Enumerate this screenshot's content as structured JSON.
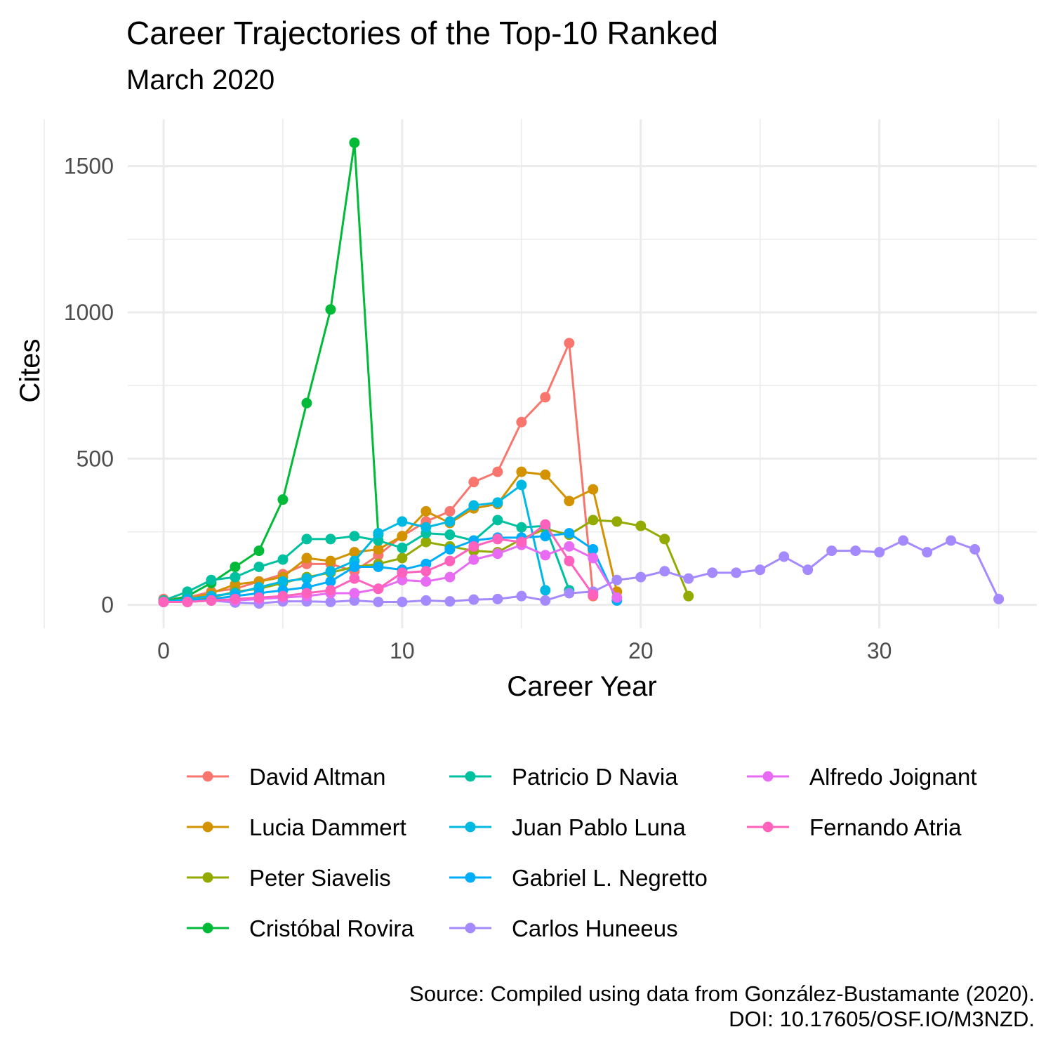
{
  "chart_data": {
    "type": "line",
    "title": "Career Trajectories of the Top-10 Ranked",
    "subtitle": "March 2020",
    "xlabel": "Career Year",
    "ylabel": "Cites",
    "xlim": [
      -1.5,
      36.6
    ],
    "ylim": [
      -80,
      1660
    ],
    "xticks": [
      0,
      10,
      20,
      30
    ],
    "yticks": [
      0,
      500,
      1000,
      1500
    ],
    "grid": true,
    "legend_position": "bottom",
    "caption_line1": "Source: Compiled using data from González-Bustamante (2020).",
    "caption_line2": "DOI: 10.17605/OSF.IO/M3NZD.",
    "series": [
      {
        "name": "David Altman",
        "color": "#F8766D",
        "x": [
          0,
          1,
          2,
          3,
          4,
          5,
          6,
          7,
          8,
          9,
          10,
          11,
          12,
          13,
          14,
          15,
          16,
          17,
          18
        ],
        "y": [
          20,
          25,
          45,
          55,
          80,
          105,
          140,
          140,
          115,
          170,
          235,
          285,
          320,
          420,
          455,
          625,
          710,
          895,
          30
        ]
      },
      {
        "name": "Lucia Dammert",
        "color": "#D39200",
        "x": [
          0,
          1,
          2,
          3,
          4,
          5,
          6,
          7,
          8,
          9,
          10,
          11,
          12,
          13,
          14,
          15,
          16,
          17,
          18,
          19
        ],
        "y": [
          15,
          20,
          40,
          70,
          80,
          95,
          160,
          150,
          180,
          190,
          235,
          320,
          280,
          330,
          345,
          455,
          445,
          355,
          395,
          45
        ]
      },
      {
        "name": "Peter Siavelis",
        "color": "#93AA00",
        "x": [
          0,
          1,
          2,
          3,
          4,
          5,
          6,
          7,
          8,
          9,
          10,
          11,
          12,
          13,
          14,
          15,
          16,
          17,
          18,
          19,
          20,
          21,
          22
        ],
        "y": [
          10,
          15,
          25,
          45,
          55,
          75,
          95,
          110,
          130,
          140,
          160,
          215,
          200,
          185,
          180,
          225,
          260,
          240,
          290,
          285,
          270,
          225,
          30
        ]
      },
      {
        "name": "Cristóbal Rovira",
        "color": "#00BA38",
        "x": [
          0,
          1,
          2,
          3,
          4,
          5,
          6,
          7,
          8,
          9
        ],
        "y": [
          10,
          30,
          75,
          130,
          185,
          360,
          690,
          1010,
          1580,
          240
        ]
      },
      {
        "name": "Patricio D Navia",
        "color": "#00C19F",
        "x": [
          0,
          1,
          2,
          3,
          4,
          5,
          6,
          7,
          8,
          9,
          10,
          11,
          12,
          13,
          14,
          15,
          16,
          17
        ],
        "y": [
          15,
          45,
          85,
          95,
          130,
          155,
          225,
          225,
          235,
          220,
          195,
          245,
          240,
          220,
          290,
          265,
          270,
          50
        ]
      },
      {
        "name": "Juan Pablo Luna",
        "color": "#00B9E3",
        "x": [
          0,
          1,
          2,
          3,
          4,
          5,
          6,
          7,
          8,
          9,
          10,
          11,
          12,
          13,
          14,
          15,
          16
        ],
        "y": [
          10,
          20,
          30,
          40,
          60,
          80,
          90,
          115,
          150,
          245,
          285,
          265,
          285,
          340,
          350,
          410,
          50
        ]
      },
      {
        "name": "Gabriel L. Negretto",
        "color": "#00ADFA",
        "x": [
          0,
          1,
          2,
          3,
          4,
          5,
          6,
          7,
          8,
          9,
          10,
          11,
          12,
          13,
          14,
          15,
          16,
          17,
          18,
          19
        ],
        "y": [
          10,
          15,
          20,
          30,
          40,
          50,
          60,
          80,
          130,
          130,
          120,
          140,
          190,
          220,
          230,
          230,
          235,
          245,
          190,
          15
        ]
      },
      {
        "name": "Carlos Huneeus",
        "color": "#A58AFF",
        "x": [
          0,
          1,
          2,
          3,
          4,
          5,
          6,
          7,
          8,
          9,
          10,
          11,
          12,
          13,
          14,
          15,
          16,
          17,
          18,
          19,
          20,
          21,
          22,
          23,
          24,
          25,
          26,
          27,
          28,
          29,
          30,
          31,
          32,
          33,
          34,
          35
        ],
        "y": [
          10,
          10,
          15,
          8,
          5,
          12,
          12,
          10,
          15,
          10,
          10,
          15,
          12,
          18,
          20,
          30,
          15,
          40,
          45,
          85,
          95,
          115,
          90,
          110,
          110,
          120,
          165,
          120,
          185,
          185,
          180,
          220,
          180,
          220,
          190,
          20
        ]
      },
      {
        "name": "Alfredo Joignant",
        "color": "#E76BF3",
        "x": [
          0,
          1,
          2,
          3,
          4,
          5,
          6,
          7,
          8,
          9,
          10,
          11,
          12,
          13,
          14,
          15,
          16,
          17,
          18,
          19
        ],
        "y": [
          10,
          10,
          15,
          15,
          20,
          25,
          30,
          40,
          40,
          55,
          85,
          80,
          95,
          155,
          175,
          205,
          170,
          200,
          160,
          25
        ]
      },
      {
        "name": "Fernando Atria",
        "color": "#FF62BC",
        "x": [
          0,
          1,
          2,
          3,
          4,
          5,
          6,
          7,
          8,
          9,
          10,
          11,
          12,
          13,
          14,
          15,
          16,
          17,
          18
        ],
        "y": [
          10,
          10,
          15,
          20,
          25,
          30,
          40,
          50,
          90,
          55,
          110,
          115,
          150,
          200,
          225,
          215,
          275,
          150,
          35
        ]
      }
    ]
  }
}
